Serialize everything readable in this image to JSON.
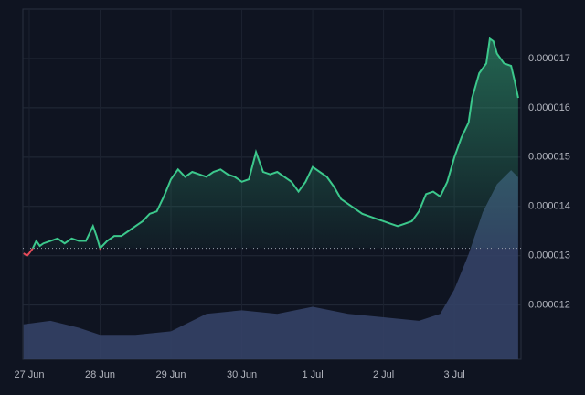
{
  "chart_data": {
    "type": "line",
    "x": [
      -0.08,
      -0.03,
      0.0,
      0.05,
      0.1,
      0.15,
      0.2,
      0.3,
      0.4,
      0.5,
      0.6,
      0.7,
      0.8,
      0.9,
      0.95,
      1.0,
      1.1,
      1.2,
      1.3,
      1.4,
      1.5,
      1.6,
      1.7,
      1.8,
      1.9,
      2.0,
      2.1,
      2.2,
      2.3,
      2.4,
      2.5,
      2.6,
      2.7,
      2.8,
      2.9,
      3.0,
      3.1,
      3.2,
      3.3,
      3.4,
      3.5,
      3.6,
      3.7,
      3.8,
      3.9,
      4.0,
      4.1,
      4.2,
      4.3,
      4.4,
      4.5,
      4.6,
      4.7,
      4.8,
      4.9,
      5.0,
      5.1,
      5.2,
      5.3,
      5.4,
      5.5,
      5.6,
      5.7,
      5.8,
      5.9,
      6.0,
      6.1,
      6.2,
      6.25,
      6.3,
      6.35,
      6.45,
      6.5,
      6.55,
      6.6,
      6.7,
      6.8,
      6.85,
      6.9
    ],
    "series": [
      {
        "color": "#3cc88c",
        "down_color": "#e64b5a",
        "values": [
          1.305e-05,
          1.3e-05,
          1.305e-05,
          1.315e-05,
          1.33e-05,
          1.32e-05,
          1.325e-05,
          1.33e-05,
          1.335e-05,
          1.325e-05,
          1.335e-05,
          1.33e-05,
          1.33e-05,
          1.36e-05,
          1.34e-05,
          1.315e-05,
          1.33e-05,
          1.34e-05,
          1.34e-05,
          1.35e-05,
          1.36e-05,
          1.37e-05,
          1.385e-05,
          1.39e-05,
          1.42e-05,
          1.455e-05,
          1.475e-05,
          1.46e-05,
          1.47e-05,
          1.465e-05,
          1.46e-05,
          1.47e-05,
          1.475e-05,
          1.465e-05,
          1.46e-05,
          1.45e-05,
          1.455e-05,
          1.51e-05,
          1.47e-05,
          1.465e-05,
          1.47e-05,
          1.46e-05,
          1.45e-05,
          1.43e-05,
          1.45e-05,
          1.48e-05,
          1.47e-05,
          1.46e-05,
          1.44e-05,
          1.415e-05,
          1.405e-05,
          1.395e-05,
          1.385e-05,
          1.38e-05,
          1.375e-05,
          1.37e-05,
          1.365e-05,
          1.36e-05,
          1.365e-05,
          1.37e-05,
          1.39e-05,
          1.425e-05,
          1.43e-05,
          1.42e-05,
          1.45e-05,
          1.5e-05,
          1.54e-05,
          1.57e-05,
          1.62e-05,
          1.645e-05,
          1.67e-05,
          1.69e-05,
          1.74e-05,
          1.735e-05,
          1.71e-05,
          1.69e-05,
          1.685e-05,
          1.655e-05,
          1.62e-05
        ]
      }
    ],
    "baseline": 1.315e-05,
    "volume": {
      "color": "#36446a",
      "x": [
        -0.08,
        0.3,
        0.7,
        1.0,
        1.5,
        2.0,
        2.5,
        3.0,
        3.5,
        4.0,
        4.5,
        5.0,
        5.5,
        5.8,
        6.0,
        6.2,
        6.4,
        6.6,
        6.8,
        6.9
      ],
      "values": [
        10,
        11,
        9,
        7,
        7,
        8,
        13,
        14,
        13,
        15,
        13,
        12,
        11,
        13,
        20,
        30,
        42,
        50,
        54,
        52
      ]
    },
    "volume_lim": [
      0,
      100
    ],
    "xlim": [
      -0.09,
      6.94
    ],
    "xticks": [
      {
        "value": 0,
        "label": "27 Jun"
      },
      {
        "value": 1,
        "label": "28 Jun"
      },
      {
        "value": 2,
        "label": "29 Jun"
      },
      {
        "value": 3,
        "label": "30 Jun"
      },
      {
        "value": 4,
        "label": "1 Jul"
      },
      {
        "value": 5,
        "label": "2 Jul"
      },
      {
        "value": 6,
        "label": "3 Jul"
      }
    ],
    "ylim": [
      1.09e-05,
      1.8e-05
    ],
    "yticks": [
      1.2e-05,
      1.3e-05,
      1.4e-05,
      1.5e-05,
      1.6e-05,
      1.7e-05
    ],
    "grid": true
  }
}
